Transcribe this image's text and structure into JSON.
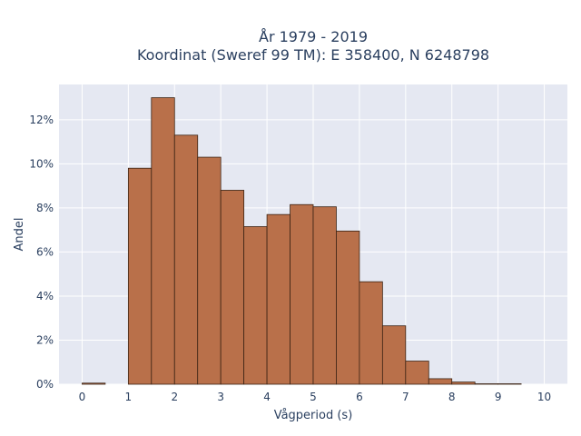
{
  "chart_data": {
    "type": "bar",
    "title_line1": "År 1979 - 2019",
    "title_line2": "Koordinat (Sweref 99 TM): E 358400, N 6248798",
    "xlabel": "Vågperiod (s)",
    "ylabel": "Andel",
    "bin_width": 0.5,
    "bin_starts": [
      0,
      0.5,
      1,
      1.5,
      2,
      2.5,
      3,
      3.5,
      4,
      4.5,
      5,
      5.5,
      6,
      6.5,
      7,
      7.5,
      8,
      8.5,
      9,
      9.5
    ],
    "values": [
      0.05,
      0,
      9.8,
      13.0,
      11.3,
      10.3,
      8.8,
      7.15,
      7.7,
      8.15,
      8.05,
      6.95,
      4.65,
      2.65,
      1.05,
      0.25,
      0.1,
      0.02,
      0.02,
      0
    ],
    "xlim": [
      -0.5,
      10.5
    ],
    "ylim": [
      0,
      13.6
    ],
    "x_ticks": [
      0,
      1,
      2,
      3,
      4,
      5,
      6,
      7,
      8,
      9,
      10
    ],
    "x_tick_labels": [
      "0",
      "1",
      "2",
      "3",
      "4",
      "5",
      "6",
      "7",
      "8",
      "9",
      "10"
    ],
    "y_ticks": [
      0,
      2,
      4,
      6,
      8,
      10,
      12
    ],
    "y_tick_labels": [
      "0%",
      "2%",
      "4%",
      "6%",
      "8%",
      "10%",
      "12%"
    ],
    "grid": true,
    "bar_color": "#b9704a",
    "bar_edge_color": "#3b2314",
    "plot_bg_color": "#e5e8f2",
    "grid_color": "#ffffff"
  }
}
